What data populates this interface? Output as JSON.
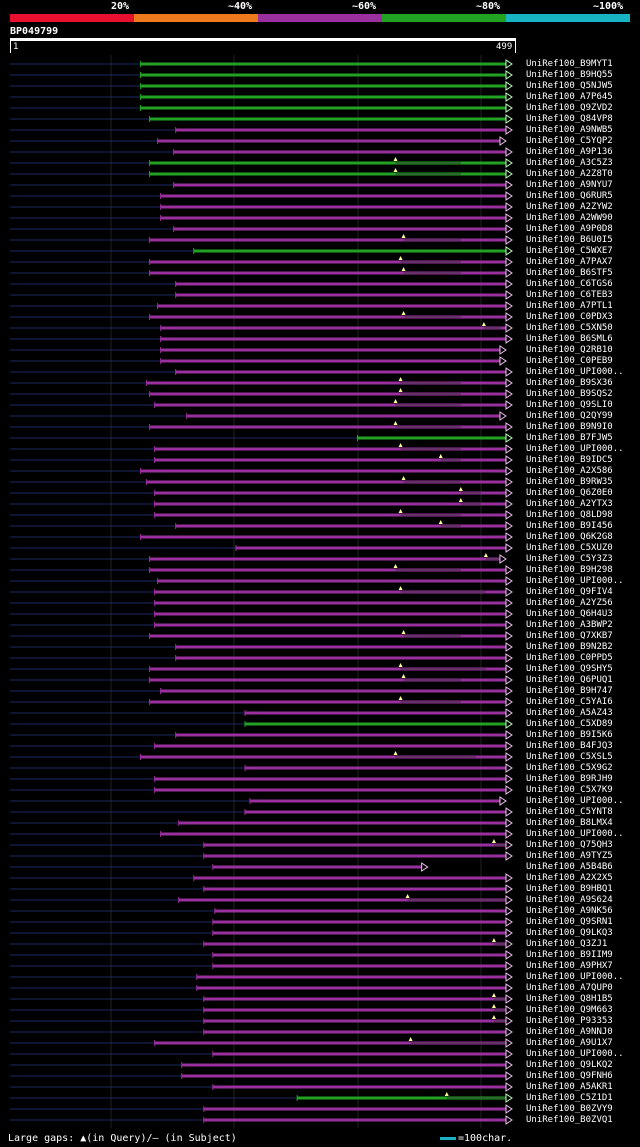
{
  "legend": {
    "labels": [
      "20%",
      "~40%",
      "~60%",
      "~80%",
      "~100%"
    ],
    "colors": [
      "#e8102e",
      "#ee7a1c",
      "#9a2f9e",
      "#22a222",
      "#19b4c4"
    ]
  },
  "query": {
    "id": "BP049799",
    "start": "1",
    "end": "499"
  },
  "footer": {
    "gaps": "Large gaps: ▲(in Query)/– (in Subject)",
    "scale": "=100char."
  },
  "colors": {
    "identity_60": "#9a2f9e",
    "identity_80": "#22a222",
    "background": "#000000",
    "left_overhang": "#1a2a66"
  },
  "hits": [
    {
      "name": "UniRef100_B9MYT1",
      "start": 131,
      "end": 499,
      "id": 80,
      "tip": "arrow"
    },
    {
      "name": "UniRef100_B9HQ55",
      "start": 131,
      "end": 499,
      "id": 80,
      "tip": "arrow"
    },
    {
      "name": "UniRef100_Q5NJW5",
      "start": 131,
      "end": 499,
      "id": 80,
      "tip": "arrow"
    },
    {
      "name": "UniRef100_A7P645",
      "start": 131,
      "end": 499,
      "id": 80,
      "tip": "arrow"
    },
    {
      "name": "UniRef100_Q9ZVD2",
      "start": 131,
      "end": 499,
      "id": 80,
      "tip": "arrow"
    },
    {
      "name": "UniRef100_Q84VP8",
      "start": 140,
      "end": 499,
      "id": 80,
      "tip": "arrow"
    },
    {
      "name": "UniRef100_A9NWB5",
      "start": 166,
      "end": 499,
      "id": 60,
      "tip": "arrow"
    },
    {
      "name": "UniRef100_C5YQP2",
      "start": 148,
      "end": 493,
      "id": 60,
      "tip": "arrow"
    },
    {
      "name": "UniRef100_A9P136",
      "start": 164,
      "end": 499,
      "id": 60,
      "tip": "arrow"
    },
    {
      "name": "UniRef100_A3C5Z3",
      "start": 140,
      "end": 499,
      "id": 80,
      "tip": "arrow",
      "gap": [
        385,
        450
      ]
    },
    {
      "name": "UniRef100_A2Z8T0",
      "start": 140,
      "end": 499,
      "id": 80,
      "tip": "arrow",
      "gap": [
        385,
        450
      ]
    },
    {
      "name": "UniRef100_A9NYU7",
      "start": 164,
      "end": 499,
      "id": 60,
      "tip": "arrow"
    },
    {
      "name": "UniRef100_Q6RUR5",
      "start": 151,
      "end": 499,
      "id": 60,
      "tip": "arrow"
    },
    {
      "name": "UniRef100_A2ZYW2",
      "start": 151,
      "end": 499,
      "id": 60,
      "tip": "arrow"
    },
    {
      "name": "UniRef100_A2WW90",
      "start": 151,
      "end": 499,
      "id": 60,
      "tip": "arrow"
    },
    {
      "name": "UniRef100_A9P0D8",
      "start": 164,
      "end": 499,
      "id": 60,
      "tip": "arrow"
    },
    {
      "name": "UniRef100_B6U0I5",
      "start": 140,
      "end": 499,
      "id": 60,
      "tip": "arrow",
      "gap": [
        393,
        450
      ]
    },
    {
      "name": "UniRef100_C5WXE7",
      "start": 184,
      "end": 499,
      "id": 80,
      "tip": "arrow"
    },
    {
      "name": "UniRef100_A7PAX7",
      "start": 140,
      "end": 499,
      "id": 60,
      "tip": "arrow",
      "gap": [
        390,
        450
      ]
    },
    {
      "name": "UniRef100_B6STF5",
      "start": 140,
      "end": 499,
      "id": 60,
      "tip": "arrow",
      "gap": [
        393,
        450
      ]
    },
    {
      "name": "UniRef100_C6TGS6",
      "start": 166,
      "end": 499,
      "id": 60,
      "tip": "arrow"
    },
    {
      "name": "UniRef100_C6TEB3",
      "start": 166,
      "end": 499,
      "id": 60,
      "tip": "arrow"
    },
    {
      "name": "UniRef100_A7PTL1",
      "start": 148,
      "end": 499,
      "id": 60,
      "tip": "arrow"
    },
    {
      "name": "UniRef100_C0PDX3",
      "start": 140,
      "end": 499,
      "id": 60,
      "tip": "arrow",
      "gap": [
        393,
        450
      ]
    },
    {
      "name": "UniRef100_C5XN50",
      "start": 151,
      "end": 499,
      "id": 60,
      "tip": "arrow",
      "gap": [
        473,
        490
      ]
    },
    {
      "name": "UniRef100_B6SML6",
      "start": 151,
      "end": 499,
      "id": 60,
      "tip": "arrow"
    },
    {
      "name": "UniRef100_Q2RB10",
      "start": 151,
      "end": 493,
      "id": 60,
      "tip": "arrow"
    },
    {
      "name": "UniRef100_C0PEB9",
      "start": 151,
      "end": 493,
      "id": 60,
      "tip": "arrow"
    },
    {
      "name": "UniRef100_UPI000..",
      "start": 166,
      "end": 499,
      "id": 60,
      "tip": "arrow"
    },
    {
      "name": "UniRef100_B9SX36",
      "start": 137,
      "end": 499,
      "id": 60,
      "tip": "arrow",
      "gap": [
        390,
        450
      ]
    },
    {
      "name": "UniRef100_B9SQS2",
      "start": 140,
      "end": 499,
      "id": 60,
      "tip": "arrow",
      "gap": [
        390,
        450
      ]
    },
    {
      "name": "UniRef100_Q9SLI0",
      "start": 145,
      "end": 499,
      "id": 60,
      "tip": "arrow",
      "gap": [
        385,
        450
      ]
    },
    {
      "name": "UniRef100_Q2QY99",
      "start": 177,
      "end": 493,
      "id": 60,
      "tip": "arrow"
    },
    {
      "name": "UniRef100_B9N9I0",
      "start": 140,
      "end": 499,
      "id": 60,
      "tip": "arrow",
      "gap": [
        385,
        450
      ]
    },
    {
      "name": "UniRef100_B7FJW5",
      "start": 347,
      "end": 499,
      "id": 80,
      "tip": "arrow"
    },
    {
      "name": "UniRef100_UPI000..",
      "start": 145,
      "end": 499,
      "id": 60,
      "tip": "arrow",
      "gap": [
        390,
        450
      ]
    },
    {
      "name": "UniRef100_B9IDC5",
      "start": 145,
      "end": 499,
      "id": 60,
      "tip": "arrow",
      "gap": [
        430,
        450
      ]
    },
    {
      "name": "UniRef100_A2X586",
      "start": 131,
      "end": 499,
      "id": 60,
      "tip": "arrow"
    },
    {
      "name": "UniRef100_B9RW35",
      "start": 137,
      "end": 499,
      "id": 60,
      "tip": "arrow",
      "gap": [
        393,
        450
      ]
    },
    {
      "name": "UniRef100_Q6Z0E0",
      "start": 145,
      "end": 499,
      "id": 60,
      "tip": "arrow",
      "gap": [
        450,
        470
      ]
    },
    {
      "name": "UniRef100_A2YTX3",
      "start": 145,
      "end": 499,
      "id": 60,
      "tip": "arrow",
      "gap": [
        450,
        470
      ]
    },
    {
      "name": "UniRef100_Q8LD98",
      "start": 145,
      "end": 499,
      "id": 60,
      "tip": "arrow",
      "gap": [
        390,
        450
      ]
    },
    {
      "name": "UniRef100_B9I456",
      "start": 166,
      "end": 499,
      "id": 60,
      "tip": "arrow",
      "gap": [
        430,
        450
      ]
    },
    {
      "name": "UniRef100_Q6K2G8",
      "start": 131,
      "end": 499,
      "id": 60,
      "tip": "arrow"
    },
    {
      "name": "UniRef100_C5XUZ0",
      "start": 226,
      "end": 499,
      "id": 60,
      "tip": "arrow"
    },
    {
      "name": "UniRef100_C5Y3Z3",
      "start": 140,
      "end": 493,
      "id": 60,
      "tip": "arrow",
      "gap": [
        475,
        490
      ]
    },
    {
      "name": "UniRef100_B9H298",
      "start": 140,
      "end": 499,
      "id": 60,
      "tip": "arrow",
      "gap": [
        385,
        450
      ]
    },
    {
      "name": "UniRef100_UPI000..",
      "start": 148,
      "end": 499,
      "id": 60,
      "tip": "arrow"
    },
    {
      "name": "UniRef100_Q9FIV4",
      "start": 145,
      "end": 499,
      "id": 60,
      "tip": "arrow",
      "gap": [
        390,
        475
      ]
    },
    {
      "name": "UniRef100_A2YZ56",
      "start": 145,
      "end": 499,
      "id": 60,
      "tip": "arrow"
    },
    {
      "name": "UniRef100_Q6H4U3",
      "start": 145,
      "end": 499,
      "id": 60,
      "tip": "arrow"
    },
    {
      "name": "UniRef100_A3BWP2",
      "start": 145,
      "end": 499,
      "id": 60,
      "tip": "arrow"
    },
    {
      "name": "UniRef100_Q7XKB7",
      "start": 140,
      "end": 499,
      "id": 60,
      "tip": "arrow",
      "gap": [
        393,
        450
      ]
    },
    {
      "name": "UniRef100_B9N2B2",
      "start": 166,
      "end": 499,
      "id": 60,
      "tip": "arrow"
    },
    {
      "name": "UniRef100_C0PPD5",
      "start": 166,
      "end": 499,
      "id": 60,
      "tip": "arrow"
    },
    {
      "name": "UniRef100_Q9SHY5",
      "start": 140,
      "end": 499,
      "id": 60,
      "tip": "arrow",
      "gap": [
        390,
        475
      ]
    },
    {
      "name": "UniRef100_Q6PUQ1",
      "start": 140,
      "end": 499,
      "id": 60,
      "tip": "arrow",
      "gap": [
        393,
        450
      ]
    },
    {
      "name": "UniRef100_B9H747",
      "start": 151,
      "end": 499,
      "id": 60,
      "tip": "arrow"
    },
    {
      "name": "UniRef100_C5YAI6",
      "start": 140,
      "end": 499,
      "id": 60,
      "tip": "arrow",
      "gap": [
        390,
        450
      ]
    },
    {
      "name": "UniRef100_A5AZ43",
      "start": 235,
      "end": 499,
      "id": 60,
      "tip": "arrow"
    },
    {
      "name": "UniRef100_C5XD89",
      "start": 235,
      "end": 499,
      "id": 80,
      "tip": "arrow"
    },
    {
      "name": "UniRef100_B9I5K6",
      "start": 166,
      "end": 499,
      "id": 60,
      "tip": "arrow"
    },
    {
      "name": "UniRef100_B4FJQ3",
      "start": 145,
      "end": 499,
      "id": 60,
      "tip": "arrow"
    },
    {
      "name": "UniRef100_C5XSL5",
      "start": 131,
      "end": 499,
      "id": 60,
      "tip": "arrow",
      "gap": [
        385,
        465
      ]
    },
    {
      "name": "UniRef100_C5X9G2",
      "start": 235,
      "end": 499,
      "id": 60,
      "tip": "arrow"
    },
    {
      "name": "UniRef100_B9RJH9",
      "start": 145,
      "end": 499,
      "id": 60,
      "tip": "arrow"
    },
    {
      "name": "UniRef100_C5X7K9",
      "start": 145,
      "end": 499,
      "id": 60,
      "tip": "arrow"
    },
    {
      "name": "UniRef100_UPI000..",
      "start": 240,
      "end": 493,
      "id": 60,
      "tip": "arrow"
    },
    {
      "name": "UniRef100_C5YNT8",
      "start": 235,
      "end": 499,
      "id": 60,
      "tip": "arrow"
    },
    {
      "name": "UniRef100_B8LMX4",
      "start": 169,
      "end": 499,
      "id": 60,
      "tip": "arrow"
    },
    {
      "name": "UniRef100_UPI000..",
      "start": 151,
      "end": 499,
      "id": 60,
      "tip": "arrow"
    },
    {
      "name": "UniRef100_Q75QH3",
      "start": 194,
      "end": 499,
      "id": 60,
      "tip": "arrow",
      "gap": [
        483,
        495
      ]
    },
    {
      "name": "UniRef100_A9TYZ5",
      "start": 194,
      "end": 499,
      "id": 60,
      "tip": "arrow"
    },
    {
      "name": "UniRef100_A5B4B6",
      "start": 203,
      "end": 415,
      "id": 60,
      "tip": "arrow"
    },
    {
      "name": "UniRef100_A2X2X5",
      "start": 184,
      "end": 499,
      "id": 60,
      "tip": "arrow"
    },
    {
      "name": "UniRef100_B9HBQ1",
      "start": 194,
      "end": 499,
      "id": 60,
      "tip": "arrow"
    },
    {
      "name": "UniRef100_A9S624",
      "start": 169,
      "end": 499,
      "id": 60,
      "tip": "arrow",
      "gap": [
        397,
        495
      ]
    },
    {
      "name": "UniRef100_A9NK56",
      "start": 205,
      "end": 499,
      "id": 60,
      "tip": "arrow"
    },
    {
      "name": "UniRef100_Q9SRN1",
      "start": 203,
      "end": 499,
      "id": 60,
      "tip": "arrow"
    },
    {
      "name": "UniRef100_Q9LKQ3",
      "start": 203,
      "end": 499,
      "id": 60,
      "tip": "arrow"
    },
    {
      "name": "UniRef100_Q3ZJ1",
      "start": 194,
      "end": 499,
      "id": 60,
      "tip": "arrow",
      "gap": [
        483,
        495
      ]
    },
    {
      "name": "UniRef100_B9IIM9",
      "start": 203,
      "end": 499,
      "id": 60,
      "tip": "arrow"
    },
    {
      "name": "UniRef100_A9PHX7",
      "start": 203,
      "end": 499,
      "id": 60,
      "tip": "arrow"
    },
    {
      "name": "UniRef100_UPI000..",
      "start": 187,
      "end": 499,
      "id": 60,
      "tip": "arrow"
    },
    {
      "name": "UniRef100_A7QUP0",
      "start": 187,
      "end": 499,
      "id": 60,
      "tip": "arrow"
    },
    {
      "name": "UniRef100_Q8H1B5",
      "start": 194,
      "end": 499,
      "id": 60,
      "tip": "arrow",
      "gap": [
        483,
        495
      ]
    },
    {
      "name": "UniRef100_Q9M663",
      "start": 194,
      "end": 499,
      "id": 60,
      "tip": "arrow",
      "gap": [
        483,
        495
      ]
    },
    {
      "name": "UniRef100_P93353",
      "start": 194,
      "end": 499,
      "id": 60,
      "tip": "arrow",
      "gap": [
        483,
        495
      ]
    },
    {
      "name": "UniRef100_A9NNJ0",
      "start": 194,
      "end": 499,
      "id": 60,
      "tip": "arrow"
    },
    {
      "name": "UniRef100_A9U1X7",
      "start": 145,
      "end": 499,
      "id": 60,
      "tip": "arrow",
      "gap": [
        400,
        495
      ]
    },
    {
      "name": "UniRef100_UPI000..",
      "start": 203,
      "end": 499,
      "id": 60,
      "tip": "arrow"
    },
    {
      "name": "UniRef100_Q9LKQ2",
      "start": 172,
      "end": 499,
      "id": 60,
      "tip": "arrow"
    },
    {
      "name": "UniRef100_Q9FNH6",
      "start": 172,
      "end": 499,
      "id": 60,
      "tip": "arrow"
    },
    {
      "name": "UniRef100_A5AKR1",
      "start": 203,
      "end": 499,
      "id": 60,
      "tip": "arrow"
    },
    {
      "name": "UniRef100_C5Z1D1",
      "start": 287,
      "end": 499,
      "id": 80,
      "tip": "arrow",
      "gap": [
        436,
        495
      ]
    },
    {
      "name": "UniRef100_B0ZVY9",
      "start": 194,
      "end": 499,
      "id": 60,
      "tip": "arrow"
    },
    {
      "name": "UniRef100_B0ZVQ1",
      "start": 194,
      "end": 499,
      "id": 60,
      "tip": "arrow"
    }
  ]
}
